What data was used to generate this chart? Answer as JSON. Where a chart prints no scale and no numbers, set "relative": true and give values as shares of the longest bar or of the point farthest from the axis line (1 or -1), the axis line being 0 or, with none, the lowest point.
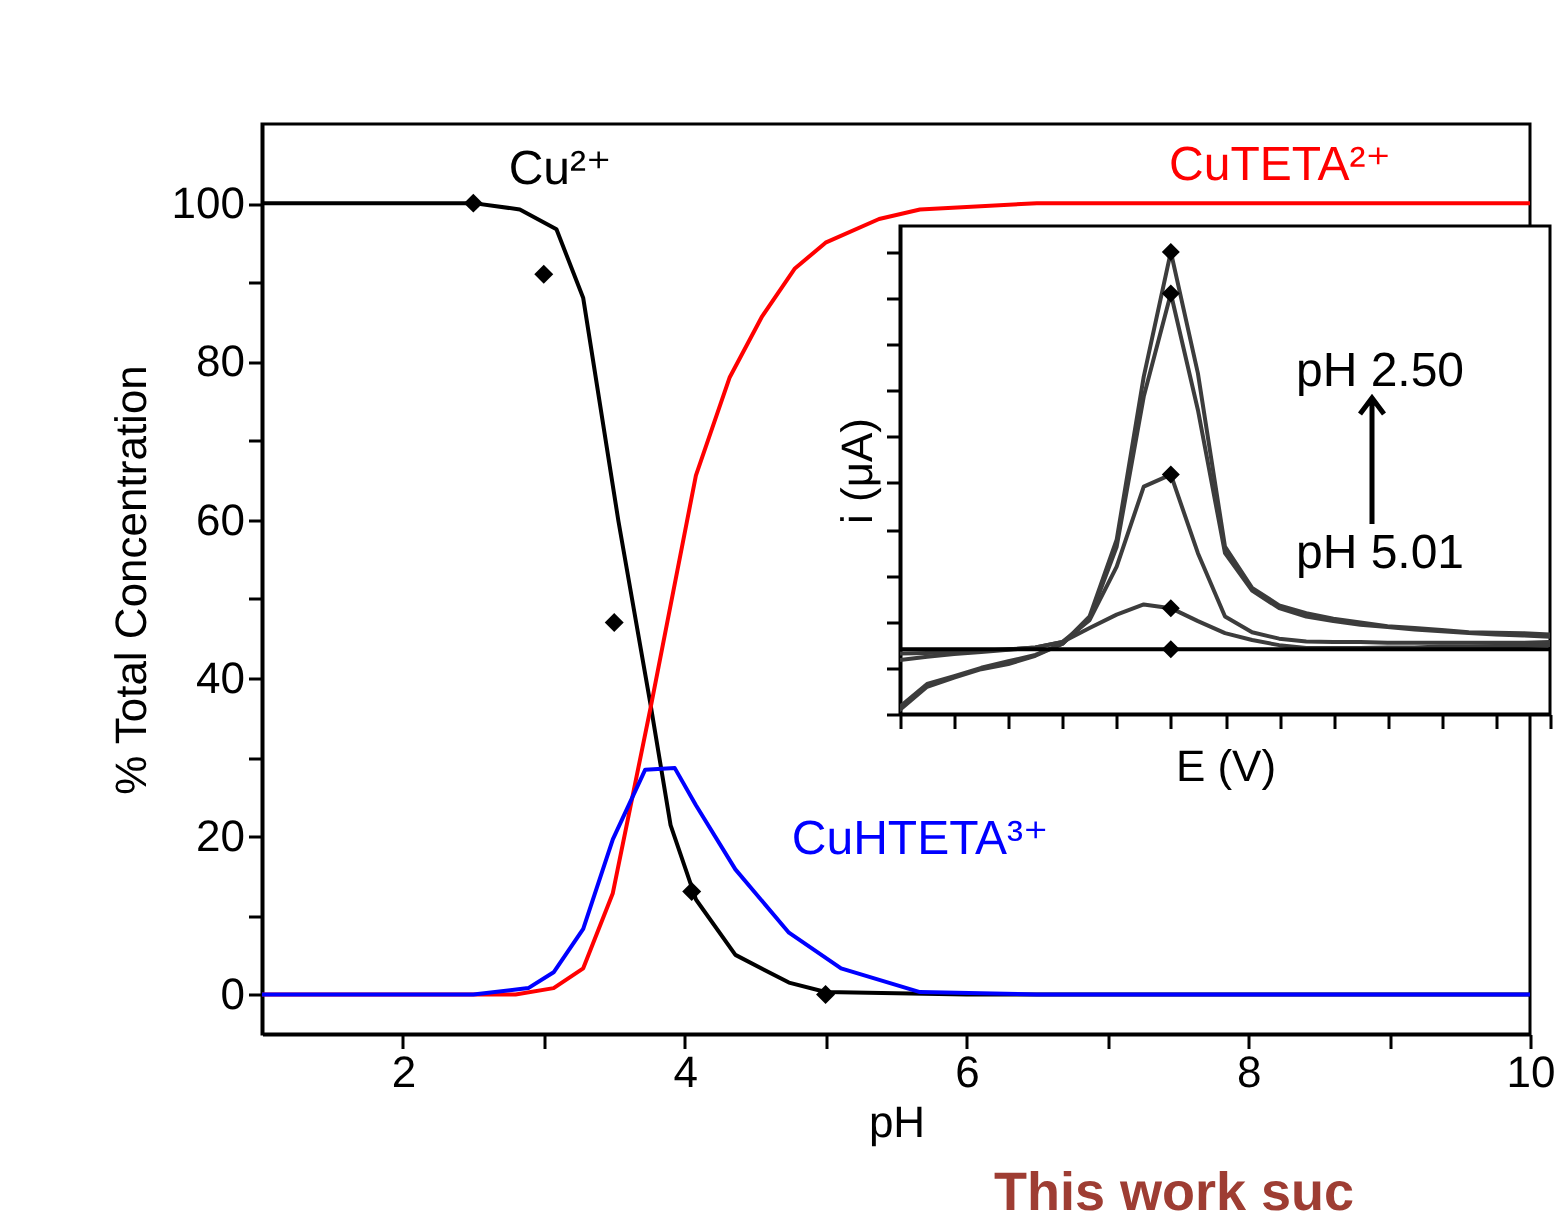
{
  "chart_data": [
    {
      "type": "line",
      "xlabel": "pH",
      "ylabel": "% Total Concentration",
      "xlim": [
        1,
        10
      ],
      "xticks": [
        2,
        {
          "value": 3,
          "label": null
        },
        4,
        {
          "value": 5,
          "label": null
        },
        6,
        {
          "value": 7,
          "label": null
        },
        8,
        {
          "value": 9,
          "label": null
        },
        10
      ],
      "ylim": [
        -5,
        110
      ],
      "yticks": [
        0,
        {
          "value": 10,
          "label": null
        },
        20,
        {
          "value": 30,
          "label": null
        },
        40,
        {
          "value": 50,
          "label": null
        },
        60,
        {
          "value": 70,
          "label": null
        },
        80,
        {
          "value": 90,
          "label": null
        },
        100
      ],
      "series": [
        {
          "name": "Cu²⁺",
          "color": "#000000",
          "x": [
            1,
            2.5,
            2.83,
            3.09,
            3.28,
            3.53,
            3.76,
            3.9,
            4.08,
            4.36,
            4.74,
            5.0,
            6,
            10
          ],
          "values": [
            100,
            100,
            99.2,
            96.7,
            88,
            59.8,
            36.4,
            21.4,
            12,
            5,
            1.5,
            0.3,
            0,
            0
          ]
        },
        {
          "name": "CuTETA²⁺",
          "color": "#ff0000",
          "x": [
            1,
            2.8,
            3.07,
            3.28,
            3.49,
            3.76,
            4.08,
            4.32,
            4.55,
            4.78,
            5.0,
            5.38,
            5.67,
            6.5,
            10
          ],
          "values": [
            0,
            0,
            0.8,
            3.3,
            12.8,
            36.4,
            65.6,
            78,
            85.7,
            91.7,
            95,
            98,
            99.2,
            100,
            100
          ]
        },
        {
          "name": "CuHTETA³⁺",
          "color": "#0000ff",
          "x": [
            1,
            2.5,
            2.89,
            3.07,
            3.28,
            3.49,
            3.72,
            3.93,
            4.08,
            4.36,
            4.74,
            5.11,
            5.67,
            6.5,
            10
          ],
          "values": [
            0,
            0,
            0.8,
            2.8,
            8.3,
            19.6,
            28.4,
            28.6,
            23.9,
            15.8,
            7.8,
            3.3,
            0.3,
            0,
            0
          ]
        },
        {
          "type": "scatter",
          "marker": "diamond",
          "color": "#000000",
          "x": [
            2.5,
            3.0,
            3.5,
            4.05,
            5.0
          ],
          "values": [
            100,
            91,
            47,
            13,
            0
          ]
        }
      ],
      "annotations": [
        "This work suc"
      ]
    },
    {
      "type": "line",
      "relative": true,
      "tick_labels": false,
      "xlabel": "E (V)",
      "ylabel": "i (μA)",
      "categories": [
        null,
        null,
        null,
        null,
        null,
        null,
        null,
        null,
        null,
        null,
        null,
        null,
        null,
        null,
        null,
        null,
        null,
        null,
        null,
        null,
        null,
        null,
        null,
        null,
        null
      ],
      "series": [
        {
          "color": "#3c3c3c",
          "values": [
            0.009,
            0.059,
            0.079,
            0.097,
            0.108,
            0.126,
            0.152,
            0.211,
            0.377,
            0.73,
            1,
            0.737,
            0.362,
            0.273,
            0.235,
            0.218,
            0.206,
            0.198,
            0.19,
            0.186,
            0.182,
            0.177,
            0.176,
            0.175,
            0.172
          ]
        },
        {
          "color": "#3c3c3c",
          "values": [
            0.016,
            0.065,
            0.082,
            0.1,
            0.114,
            0.128,
            0.152,
            0.206,
            0.362,
            0.687,
            0.91,
            0.658,
            0.348,
            0.267,
            0.229,
            0.211,
            0.201,
            0.193,
            0.188,
            0.183,
            0.179,
            0.175,
            0.172,
            0.17,
            0.167
          ]
        },
        {
          "color": "#3c3c3c",
          "values": [
            0.117,
            0.124,
            0.13,
            0.134,
            0.139,
            0.144,
            0.156,
            0.203,
            0.319,
            0.492,
            0.518,
            0.348,
            0.211,
            0.177,
            0.163,
            0.157,
            0.156,
            0.156,
            0.154,
            0.154,
            0.154,
            0.154,
            0.154,
            0.154,
            0.156
          ]
        },
        {
          "color": "#3c3c3c",
          "values": [
            0.131,
            0.132,
            0.134,
            0.137,
            0.14,
            0.144,
            0.156,
            0.186,
            0.215,
            0.237,
            0.229,
            0.201,
            0.175,
            0.16,
            0.149,
            0.143,
            0.143,
            0.143,
            0.144,
            0.144,
            0.146,
            0.146,
            0.147,
            0.147,
            0.149
          ]
        },
        {
          "color": "#000000",
          "values": [
            0.14,
            0.14,
            0.14,
            0.14,
            0.14,
            0.14,
            0.14,
            0.14,
            0.14,
            0.14,
            0.14,
            0.14,
            0.14,
            0.14,
            0.14,
            0.14,
            0.14,
            0.14,
            0.14,
            0.14,
            0.14,
            0.14,
            0.14,
            0.14,
            0.14
          ]
        }
      ],
      "annotations": [
        "pH 2.50",
        "pH 5.01"
      ]
    }
  ]
}
